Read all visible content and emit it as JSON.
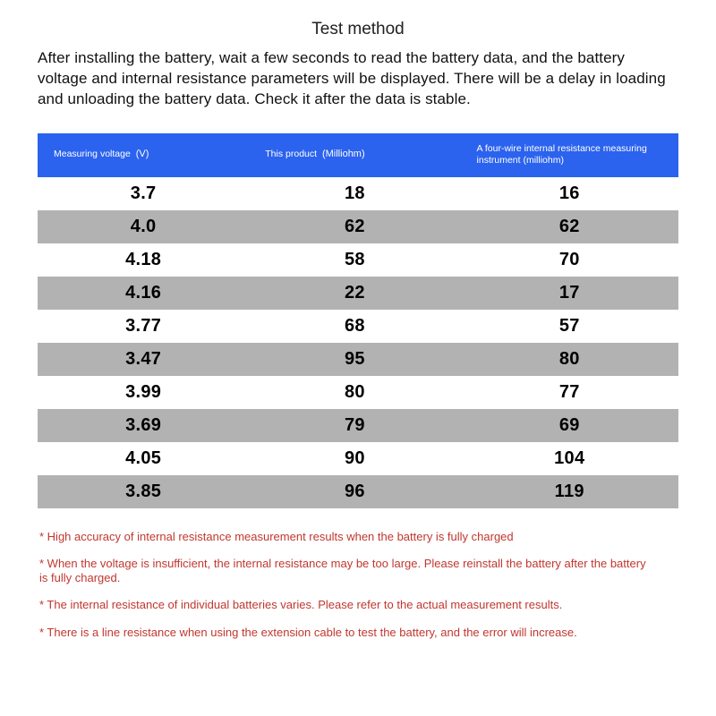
{
  "title": "Test method",
  "intro": "After installing the battery, wait a few seconds to read the battery data, and the battery voltage and internal resistance parameters will be displayed. There will be a delay in loading and unloading the battery data. Check it after the data is stable.",
  "table": {
    "header_bg": "#2b63ee",
    "header_fg": "#ffffff",
    "row_bg_even": "#ffffff",
    "row_bg_odd": "#b2b2b2",
    "columns": [
      {
        "label": "Measuring voltage",
        "unit": "(V)"
      },
      {
        "label": "This product",
        "unit": "(Milliohm)"
      },
      {
        "label": "A four-wire internal resistance measuring instrument (milliohm)",
        "unit": ""
      }
    ],
    "rows": [
      [
        "3.7",
        "18",
        "16"
      ],
      [
        "4.0",
        "62",
        "62"
      ],
      [
        "4.18",
        "58",
        "70"
      ],
      [
        "4.16",
        "22",
        "17"
      ],
      [
        "3.77",
        "68",
        "57"
      ],
      [
        "3.47",
        "95",
        "80"
      ],
      [
        "3.99",
        "80",
        "77"
      ],
      [
        "3.69",
        "79",
        "69"
      ],
      [
        "4.05",
        "90",
        "104"
      ],
      [
        "3.85",
        "96",
        "119"
      ]
    ]
  },
  "notes": [
    "* High accuracy of internal resistance measurement results when the battery is fully charged",
    "* When the voltage is insufficient, the internal resistance may be too large. Please reinstall the battery after the battery is fully charged.",
    "* The internal resistance of individual batteries varies. Please refer to the actual measurement results.",
    "* There is a line resistance when using the extension cable to test the battery, and the error will increase."
  ],
  "note_color": "#c0372f"
}
